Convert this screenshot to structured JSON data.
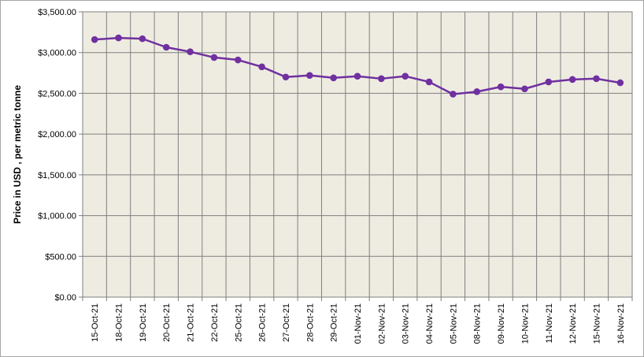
{
  "chart_data": {
    "type": "line",
    "title": "",
    "xlabel": "",
    "ylabel": "Price in USD , per metric tonne",
    "ylim": [
      0,
      3500
    ],
    "yticks": [
      "$0.00",
      "$500.00",
      "$1,000.00",
      "$1,500.00",
      "$2,000.00",
      "$2,500.00",
      "$3,000.00",
      "$3,500.00"
    ],
    "categories": [
      "15-Oct-21",
      "18-Oct-21",
      "19-Oct-21",
      "20-Oct-21",
      "21-Oct-21",
      "22-Oct-21",
      "25-Oct-21",
      "26-Oct-21",
      "27-Oct-21",
      "28-Oct-21",
      "29-Oct-21",
      "01-Nov-21",
      "02-Nov-21",
      "03-Nov-21",
      "04-Nov-21",
      "05-Nov-21",
      "08-Nov-21",
      "09-Nov-21",
      "10-Nov-21",
      "11-Nov-21",
      "12-Nov-21",
      "15-Nov-21",
      "16-Nov-21"
    ],
    "series": [
      {
        "values": [
          3160,
          3180,
          3170,
          3065,
          3010,
          2940,
          2910,
          2825,
          2700,
          2720,
          2690,
          2710,
          2680,
          2710,
          2640,
          2490,
          2520,
          2580,
          2555,
          2640,
          2670,
          2680,
          2630
        ]
      }
    ],
    "grid": true,
    "legend": "none",
    "colors": {
      "line": "#7030a0",
      "plot_background": "#eeece1",
      "grid": "#7f7f7f"
    }
  }
}
